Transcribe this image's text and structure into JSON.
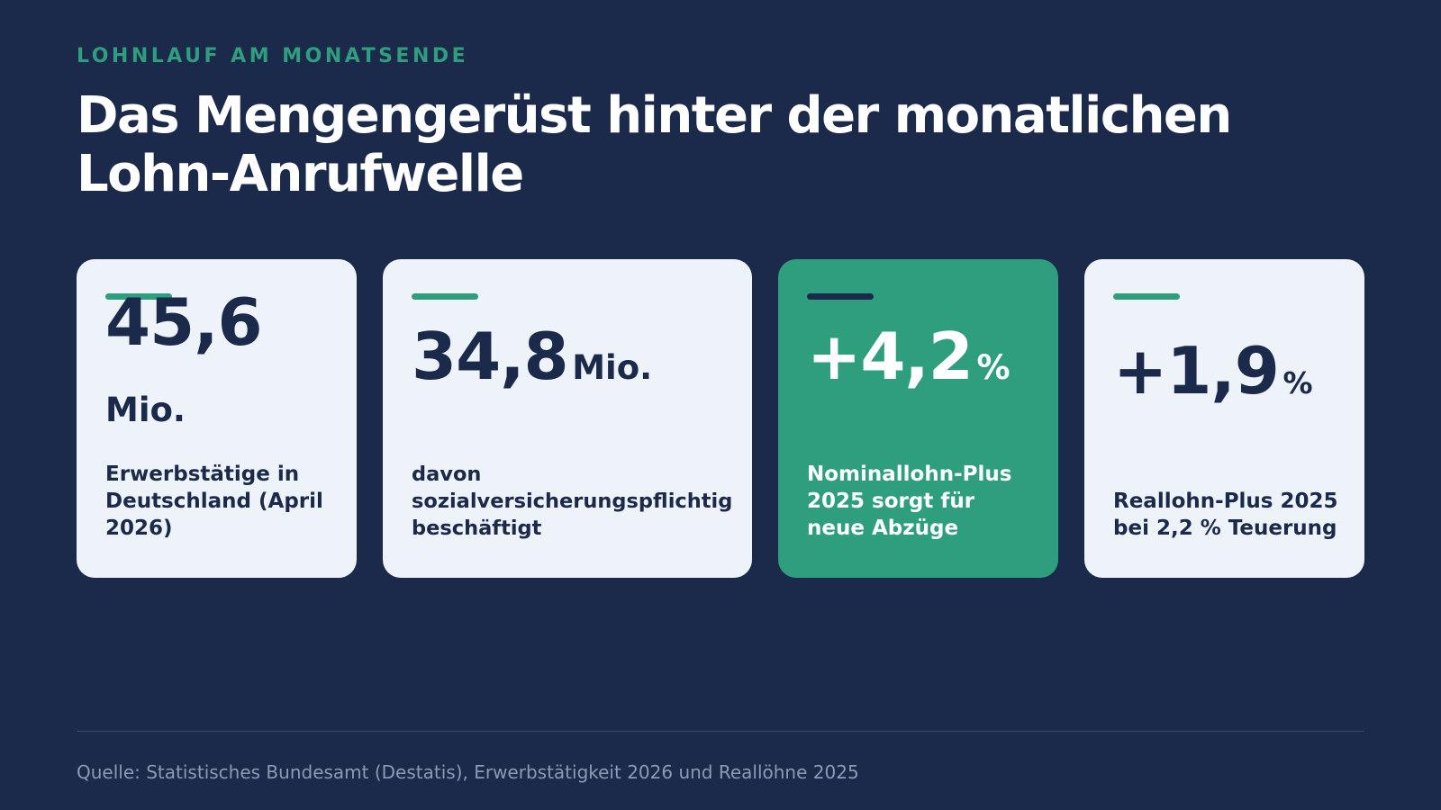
{
  "eyebrow": "LOHNLAUF AM MONATSENDE",
  "title": "Das Mengengerüst hinter der monatlichen Lohn-Anrufwelle",
  "cards": [
    {
      "value": "45,6",
      "unit": "Mio.",
      "label": "Erwerbstätige in Deutschland (April 2026)"
    },
    {
      "value": "34,8",
      "unit": "Mio.",
      "label": "davon sozialversicherungspflichtig beschäftigt"
    },
    {
      "value": "+4,2",
      "unit": "%",
      "label": "Nominallohn-Plus 2025 sorgt für neue Abzüge"
    },
    {
      "value": "+1,9",
      "unit": "%",
      "label": "Reallohn-Plus 2025 bei 2,2 % Teuerung"
    }
  ],
  "source": "Quelle: Statistisches Bundesamt (Destatis), Erwerbstätigkeit 2026 und Reallöhne 2025",
  "colors": {
    "background": "#1b2a4a",
    "accent": "#2e9e7e",
    "card": "#eef3f9",
    "text_dark": "#1b2a4a"
  }
}
